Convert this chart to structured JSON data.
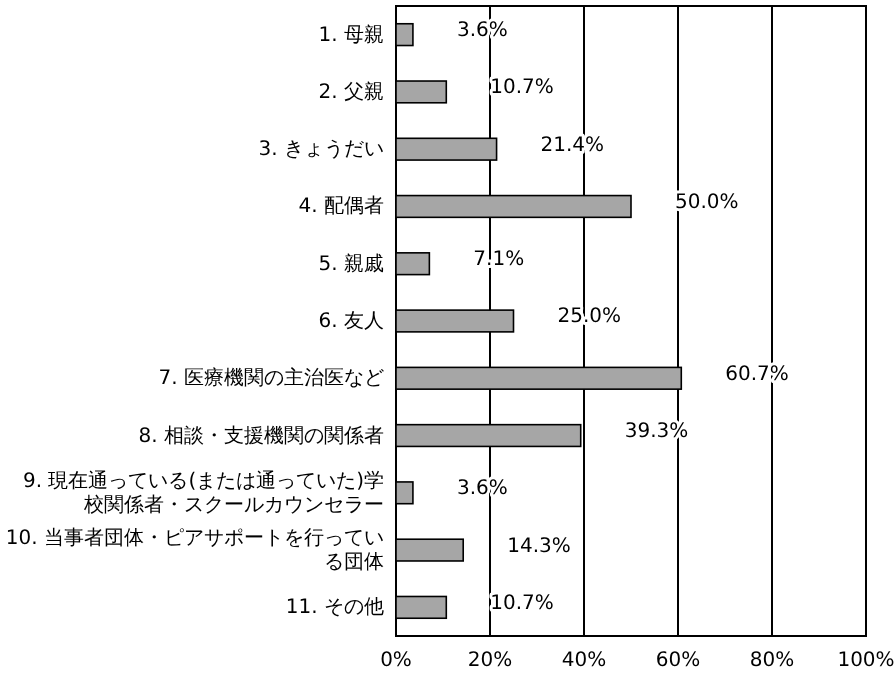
{
  "chart_data": {
    "type": "bar",
    "orientation": "horizontal",
    "categories": [
      "1. 母親",
      "2. 父親",
      "3. きょうだい",
      "4. 配偶者",
      "5. 親戚",
      "6. 友人",
      "7. 医療機関の主治医など",
      "8. 相談・支援機関の関係者",
      "9. 現在通っている(または通っていた)学校関係者・スクールカウンセラー",
      "10. 当事者団体・ピアサポートを行っている団体",
      "11. その他"
    ],
    "values": [
      3.6,
      10.7,
      21.4,
      50.0,
      7.1,
      25.0,
      60.7,
      39.3,
      3.6,
      14.3,
      10.7
    ],
    "value_labels": [
      "3.6%",
      "10.7%",
      "21.4%",
      "50.0%",
      "7.1%",
      "25.0%",
      "60.7%",
      "39.3%",
      "3.6%",
      "14.3%",
      "10.7%"
    ],
    "color": "#a6a6a6",
    "xlim": [
      0,
      100
    ],
    "xticks": [
      {
        "value": 0,
        "label": "0%"
      },
      {
        "value": 20,
        "label": "20%"
      },
      {
        "value": 40,
        "label": "40%"
      },
      {
        "value": 60,
        "label": "60%"
      },
      {
        "value": 80,
        "label": "80%"
      },
      {
        "value": 100,
        "label": "100%"
      }
    ],
    "grid": "x"
  }
}
